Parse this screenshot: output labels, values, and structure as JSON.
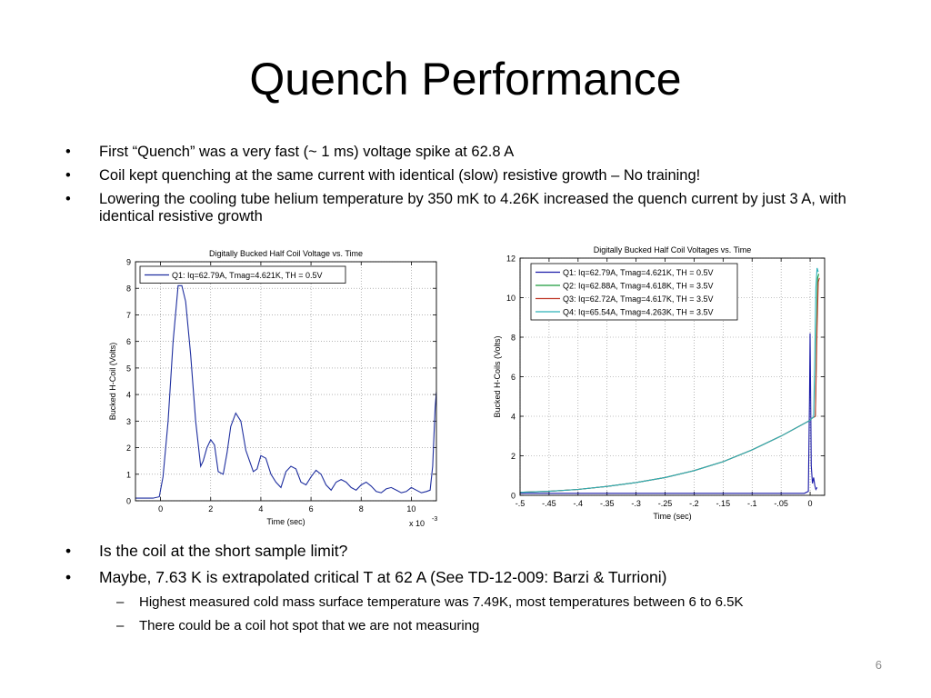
{
  "slide": {
    "title": "Quench Performance",
    "top_bullets": [
      "First “Quench” was a very fast (~ 1 ms) voltage spike at 62.8 A",
      "Coil kept quenching at the same current with identical (slow) resistive growth – No training!",
      "Lowering the cooling tube helium temperature by 350 mK to 4.26K increased the quench current by just 3 A, with identical resistive growth"
    ],
    "bottom_bullets": [
      "Is the coil at the short sample limit?",
      "Maybe, 7.63 K is extrapolated critical T at 62 A (See TD-12-009: Barzi & Turrioni)"
    ],
    "sub_bullets": [
      "Highest measured cold mass surface temperature was 7.49K, most temperatures between 6 to 6.5K",
      "There could be a coil hot spot that we are not measuring"
    ],
    "bullet_char": "•",
    "dash_char": "–",
    "page_number": "6"
  },
  "chart_data": [
    {
      "type": "line",
      "title": "Digitally Bucked Half Coil Voltage vs. Time",
      "xlabel": "Time (sec)",
      "ylabel": "Bucked H-Coil (Volts)",
      "x_multiplier_label": "x 10",
      "x_multiplier_exp": "-3",
      "xlim": [
        -1.0,
        11.0
      ],
      "ylim": [
        0,
        9
      ],
      "xticks": [
        0,
        2,
        4,
        6,
        8,
        10
      ],
      "yticks": [
        0,
        1,
        2,
        3,
        4,
        5,
        6,
        7,
        8,
        9
      ],
      "grid": true,
      "legend_position": "top",
      "series": [
        {
          "name": "Q1: Iq=62.79A, Tmag=4.621K, TH = 0.5V",
          "color": "#1f2f9f",
          "x": [
            -1.0,
            -0.3,
            -0.05,
            0.1,
            0.3,
            0.5,
            0.7,
            0.85,
            1.0,
            1.2,
            1.4,
            1.6,
            1.7,
            1.85,
            2.0,
            2.15,
            2.3,
            2.5,
            2.65,
            2.8,
            3.0,
            3.2,
            3.4,
            3.55,
            3.7,
            3.85,
            4.0,
            4.2,
            4.4,
            4.6,
            4.8,
            5.0,
            5.2,
            5.4,
            5.6,
            5.8,
            6.0,
            6.2,
            6.4,
            6.6,
            6.8,
            7.0,
            7.2,
            7.4,
            7.6,
            7.8,
            8.0,
            8.2,
            8.4,
            8.6,
            8.8,
            9.0,
            9.2,
            9.4,
            9.6,
            9.8,
            10.0,
            10.2,
            10.4,
            10.6,
            10.75,
            10.85,
            10.95,
            11.0
          ],
          "y": [
            0.1,
            0.1,
            0.15,
            0.9,
            3.0,
            6.0,
            8.1,
            8.1,
            7.5,
            5.5,
            3.0,
            1.3,
            1.5,
            2.0,
            2.3,
            2.1,
            1.1,
            1.0,
            1.8,
            2.8,
            3.3,
            3.0,
            1.9,
            1.5,
            1.1,
            1.2,
            1.7,
            1.6,
            1.0,
            0.7,
            0.5,
            1.1,
            1.3,
            1.2,
            0.7,
            0.6,
            0.9,
            1.15,
            1.0,
            0.6,
            0.4,
            0.7,
            0.8,
            0.7,
            0.5,
            0.4,
            0.6,
            0.7,
            0.55,
            0.35,
            0.3,
            0.45,
            0.5,
            0.4,
            0.3,
            0.35,
            0.5,
            0.4,
            0.3,
            0.35,
            0.4,
            1.3,
            3.5,
            4.1
          ]
        }
      ]
    },
    {
      "type": "line",
      "title": "Digitally Bucked Half Coil Voltages vs. Time",
      "xlabel": "Time (sec)",
      "ylabel": "Bucked H-Coils (Volts)",
      "xlim": [
        -0.5,
        0.025
      ],
      "ylim": [
        0,
        12
      ],
      "xticks": [
        -0.5,
        -0.45,
        -0.4,
        -0.35,
        -0.3,
        -0.25,
        -0.2,
        -0.15,
        -0.1,
        -0.05,
        0
      ],
      "yticks": [
        0,
        2,
        4,
        6,
        8,
        10,
        12
      ],
      "grid": true,
      "legend_position": "top-left",
      "series": [
        {
          "name": "Q1: Iq=62.79A, Tmag=4.621K, TH = 0.5V",
          "color": "#1a1aa8",
          "x": [
            -0.5,
            -0.4,
            -0.3,
            -0.2,
            -0.1,
            -0.01,
            -0.003,
            -0.001,
            0.0,
            0.002,
            0.004,
            0.006,
            0.008,
            0.01,
            0.012
          ],
          "y": [
            0.1,
            0.1,
            0.1,
            0.1,
            0.1,
            0.1,
            0.2,
            5.0,
            8.2,
            1.5,
            0.6,
            0.9,
            0.5,
            0.3,
            0.4
          ]
        },
        {
          "name": "Q2: Iq=62.88A, Tmag=4.618K, TH = 3.5V",
          "color": "#1a9a3a",
          "x": [
            -0.5,
            -0.45,
            -0.4,
            -0.35,
            -0.3,
            -0.25,
            -0.2,
            -0.15,
            -0.1,
            -0.05,
            0.0,
            0.003,
            0.006,
            0.009,
            0.011,
            0.013,
            0.015
          ],
          "y": [
            0.15,
            0.2,
            0.3,
            0.45,
            0.65,
            0.9,
            1.25,
            1.7,
            2.3,
            3.0,
            3.8,
            3.9,
            3.95,
            4.0,
            8.0,
            11.0,
            11.2
          ]
        },
        {
          "name": "Q3: Iq=62.72A, Tmag=4.617K, TH = 3.5V",
          "color": "#c03a2a",
          "x": [
            -0.5,
            -0.45,
            -0.4,
            -0.35,
            -0.3,
            -0.25,
            -0.2,
            -0.15,
            -0.1,
            -0.05,
            0.0,
            0.003,
            0.006,
            0.009,
            0.012,
            0.014,
            0.016
          ],
          "y": [
            0.15,
            0.2,
            0.3,
            0.45,
            0.65,
            0.9,
            1.25,
            1.7,
            2.3,
            3.0,
            3.8,
            3.9,
            3.95,
            4.0,
            8.5,
            10.8,
            11.0
          ]
        },
        {
          "name": "Q4: Iq=65.54A, Tmag=4.263K, TH = 3.5V",
          "color": "#2ab0b8",
          "x": [
            -0.5,
            -0.45,
            -0.4,
            -0.35,
            -0.3,
            -0.25,
            -0.2,
            -0.15,
            -0.1,
            -0.05,
            0.0,
            0.003,
            0.006,
            0.008,
            0.01,
            0.012,
            0.014
          ],
          "y": [
            0.15,
            0.2,
            0.3,
            0.45,
            0.65,
            0.9,
            1.25,
            1.7,
            2.3,
            3.0,
            3.8,
            3.9,
            3.95,
            7.0,
            10.5,
            11.5,
            11.3
          ]
        }
      ]
    }
  ]
}
